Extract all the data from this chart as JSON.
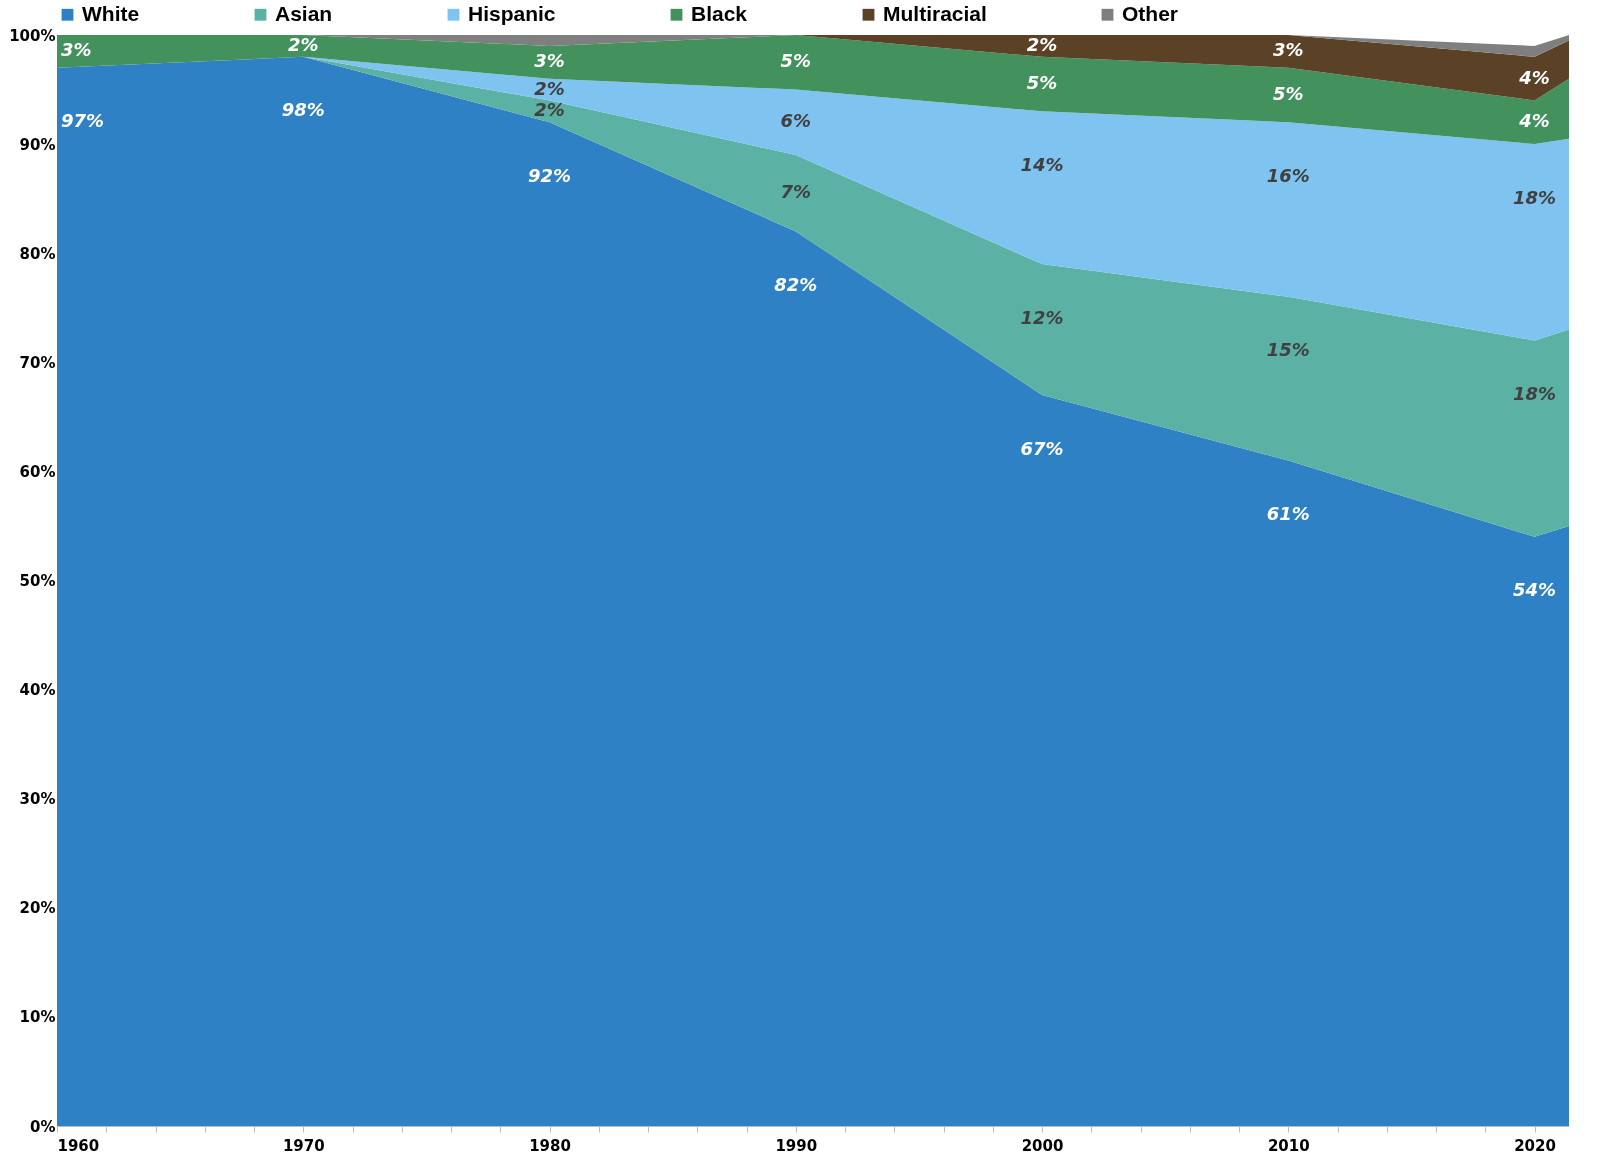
{
  "chart_data": {
    "type": "area",
    "stacked": true,
    "legend": "top",
    "x": [
      1960,
      1970,
      1980,
      1990,
      2000,
      2010,
      2020,
      2021.4
    ],
    "xlim": [
      1960,
      2021.4
    ],
    "xticks": [
      1960,
      {
        "value": 1962,
        "label": null
      },
      {
        "value": 1964,
        "label": null
      },
      {
        "value": 1966,
        "label": null
      },
      {
        "value": 1968,
        "label": null
      },
      1970,
      {
        "value": 1972,
        "label": null
      },
      {
        "value": 1974,
        "label": null
      },
      {
        "value": 1976,
        "label": null
      },
      {
        "value": 1978,
        "label": null
      },
      1980,
      {
        "value": 1982,
        "label": null
      },
      {
        "value": 1984,
        "label": null
      },
      {
        "value": 1986,
        "label": null
      },
      {
        "value": 1988,
        "label": null
      },
      1990,
      {
        "value": 1992,
        "label": null
      },
      {
        "value": 1994,
        "label": null
      },
      {
        "value": 1996,
        "label": null
      },
      {
        "value": 1998,
        "label": null
      },
      2000,
      {
        "value": 2002,
        "label": null
      },
      {
        "value": 2004,
        "label": null
      },
      {
        "value": 2006,
        "label": null
      },
      {
        "value": 2008,
        "label": null
      },
      2010,
      {
        "value": 2012,
        "label": null
      },
      {
        "value": 2014,
        "label": null
      },
      {
        "value": 2016,
        "label": null
      },
      {
        "value": 2018,
        "label": null
      },
      2020
    ],
    "ylim": [
      0,
      100
    ],
    "yticks": [
      {
        "value": 0,
        "label": "0%"
      },
      {
        "value": 10,
        "label": "10%"
      },
      {
        "value": 20,
        "label": "20%"
      },
      {
        "value": 30,
        "label": "30%"
      },
      {
        "value": 40,
        "label": "40%"
      },
      {
        "value": 50,
        "label": "50%"
      },
      {
        "value": 60,
        "label": "60%"
      },
      {
        "value": 70,
        "label": "70%"
      },
      {
        "value": 80,
        "label": "80%"
      },
      {
        "value": 90,
        "label": "90%"
      },
      {
        "value": 100,
        "label": "100%"
      }
    ],
    "series": [
      {
        "name": "White",
        "color": "#2e81c4",
        "values": [
          97,
          98,
          92,
          82,
          67,
          61,
          54,
          55
        ],
        "value_labels": [
          "97%",
          "98%",
          "92%",
          "82%",
          "67%",
          "61%",
          "54%",
          null
        ]
      },
      {
        "name": "Asian",
        "color": "#5bb1a3",
        "values": [
          0,
          0,
          2,
          7,
          12,
          15,
          18,
          18
        ],
        "value_labels": [
          null,
          null,
          "2%",
          "7%",
          "12%",
          "15%",
          "18%",
          null
        ]
      },
      {
        "name": "Hispanic",
        "color": "#7fc3f1",
        "values": [
          0,
          0,
          2,
          6,
          14,
          16,
          18,
          17.5
        ],
        "value_labels": [
          null,
          null,
          "2%",
          "6%",
          "14%",
          "16%",
          "18%",
          null
        ]
      },
      {
        "name": "Black",
        "color": "#43915c",
        "values": [
          3,
          2,
          3,
          5,
          5,
          5,
          4,
          5.5
        ],
        "value_labels": [
          "3%",
          "2%",
          "3%",
          "5%",
          "5%",
          "5%",
          "4%",
          null
        ]
      },
      {
        "name": "Multiracial",
        "color": "#5b4126",
        "values": [
          0,
          0,
          0,
          0,
          2,
          3,
          4,
          3.5
        ],
        "value_labels": [
          null,
          null,
          null,
          null,
          "2%",
          "3%",
          "4%",
          null
        ]
      },
      {
        "name": "Other",
        "color": "#7f7f7f",
        "values": [
          0,
          0,
          1,
          0,
          0,
          0,
          1,
          0.5
        ],
        "value_labels": [
          null,
          null,
          null,
          null,
          null,
          null,
          null,
          null
        ]
      }
    ]
  }
}
